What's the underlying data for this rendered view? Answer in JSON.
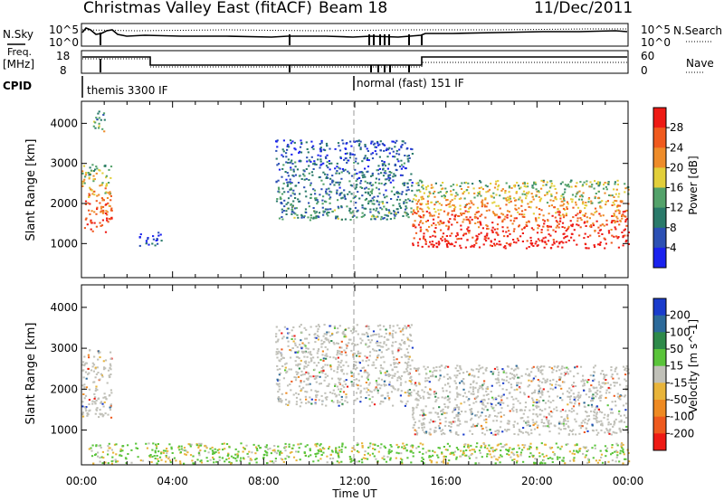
{
  "header": {
    "title": "Christmas Valley East (fitACF)",
    "beam": "Beam 18",
    "date": "11/Dec/2011"
  },
  "top_panels": {
    "nsky_label": "N.Sky",
    "nsearch_label": "N.Search",
    "nsky_ticks": [
      "10^5",
      "10^0"
    ],
    "nsearch_ticks": [
      "10^5",
      "10^0"
    ],
    "freq_label": "Freq.",
    "freq_unit": "[MHz]",
    "freq_ticks": [
      "18",
      "8"
    ],
    "nave_label": "Nave",
    "nave_ticks": [
      "60",
      "0"
    ],
    "cpid_label": "CPID",
    "cpid_modes": [
      "themis 3300 IF",
      "normal (fast) 151 IF"
    ]
  },
  "chart_data": [
    {
      "type": "heatmap",
      "title": "",
      "xlabel": "Time UT",
      "ylabel": "Slant Range [km]",
      "x_ticks": [
        "00:00",
        "04:00",
        "08:00",
        "12:00",
        "16:00",
        "20:00",
        "00:00"
      ],
      "y_ticks": [
        1000,
        2000,
        3000,
        4000
      ],
      "ylim": [
        150,
        4550
      ],
      "colorbar_label": "Power [dB]",
      "colorbar_ticks": [
        4,
        8,
        12,
        16,
        20,
        24,
        28
      ],
      "colors": [
        "#1a22ee",
        "#2c50b4",
        "#2a7a6a",
        "#53a26a",
        "#e2cf3a",
        "#ee8c2a",
        "#f05a1e",
        "#ee1a14"
      ],
      "approx_echo_regions": [
        {
          "time_h": [
            0.0,
            1.3
          ],
          "range_km": [
            1300,
            3000
          ],
          "power_db": 26
        },
        {
          "time_h": [
            0.5,
            1.0
          ],
          "range_km": [
            3800,
            4400
          ],
          "power_db": 14
        },
        {
          "time_h": [
            2.5,
            3.5
          ],
          "range_km": [
            950,
            1300
          ],
          "power_db": 6
        },
        {
          "time_h": [
            8.5,
            14.5
          ],
          "range_km": [
            1600,
            3600
          ],
          "power_db": 10
        },
        {
          "time_h": [
            14.5,
            24.0
          ],
          "range_km": [
            900,
            2600
          ],
          "power_db": 28
        }
      ]
    },
    {
      "type": "heatmap",
      "title": "",
      "xlabel": "Time UT",
      "ylabel": "Slant Range [km]",
      "x_ticks": [
        "00:00",
        "04:00",
        "08:00",
        "12:00",
        "16:00",
        "20:00",
        "00:00"
      ],
      "y_ticks": [
        1000,
        2000,
        3000,
        4000
      ],
      "ylim": [
        150,
        4550
      ],
      "colorbar_label": "Velocity [m s^-1]",
      "colorbar_ticks": [
        200,
        100,
        50,
        15,
        -15,
        -50,
        -100,
        -200
      ],
      "colors": [
        "#1a3ccc",
        "#2c6a9a",
        "#2e8a4a",
        "#5ac43a",
        "#c0c0b8",
        "#e8b43a",
        "#ee8a22",
        "#ee5a1e",
        "#ee1a14"
      ],
      "approx_echo_regions": [
        {
          "time_h": [
            0.0,
            1.3
          ],
          "range_km": [
            1300,
            3000
          ],
          "velocity": 0
        },
        {
          "time_h": [
            0.2,
            24.0
          ],
          "range_km": [
            200,
            700
          ],
          "velocity": 40
        },
        {
          "time_h": [
            8.5,
            14.5
          ],
          "range_km": [
            1600,
            3600
          ],
          "velocity": 0
        },
        {
          "time_h": [
            14.5,
            24.0
          ],
          "range_km": [
            900,
            2600
          ],
          "velocity": 0
        }
      ]
    }
  ]
}
